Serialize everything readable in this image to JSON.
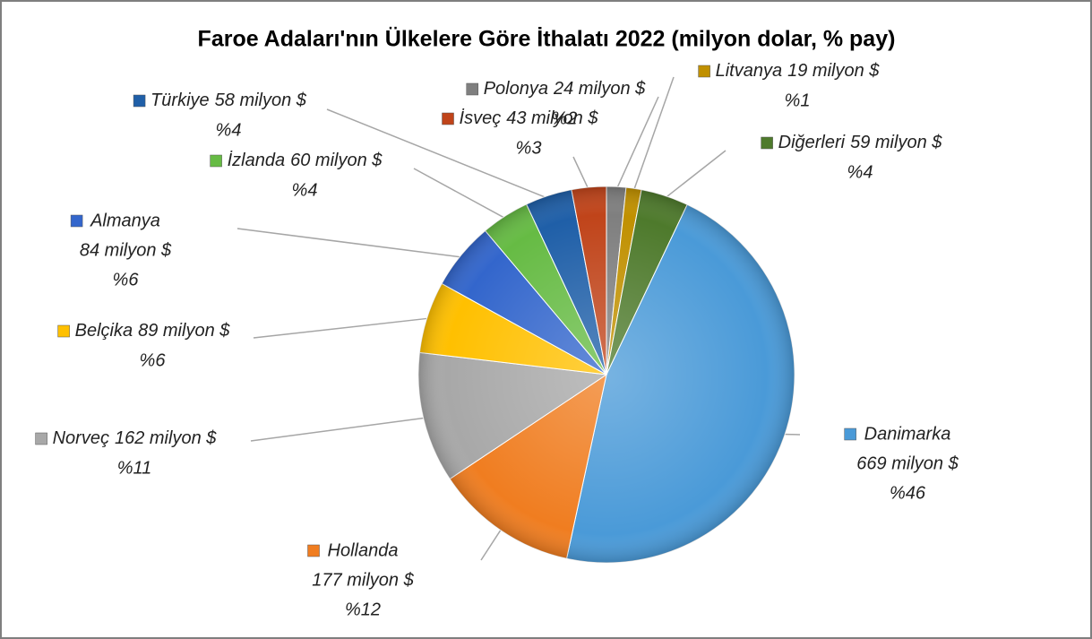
{
  "chart_data": {
    "type": "pie",
    "title": "Faroe Adaları'nın Ülkelere Göre İthalatı 2022 (milyon dolar, % pay)",
    "categories": [
      "Polonya",
      "Litvanya",
      "Diğerleri",
      "Danimarka",
      "Hollanda",
      "Norveç",
      "Belçika",
      "Almanya",
      "İzlanda",
      "Türkiye",
      "İsveç"
    ],
    "values": [
      24,
      19,
      59,
      669,
      177,
      162,
      89,
      84,
      60,
      58,
      43
    ],
    "value_labels": [
      "24 milyon $",
      "19 milyon $",
      "59 milyon $",
      "669 milyon $",
      "177 milyon $",
      "162 milyon $",
      "89 milyon $",
      "84 milyon $",
      "60 milyon $",
      "58 milyon $",
      "43 milyon $"
    ],
    "shares": [
      2,
      1,
      4,
      46,
      12,
      11,
      6,
      6,
      4,
      4,
      3
    ],
    "share_labels": [
      "%2",
      "%1",
      "%4",
      "%46",
      "%12",
      "%11",
      "%6",
      "%6",
      "%4",
      "%4",
      "%3"
    ],
    "colors": [
      "#7f7f7f",
      "#c09000",
      "#4e7a2c",
      "#4a9ad8",
      "#f07d20",
      "#a8a8a8",
      "#ffc000",
      "#3366cc",
      "#66bb44",
      "#1f5fa8",
      "#c0441a"
    ]
  }
}
